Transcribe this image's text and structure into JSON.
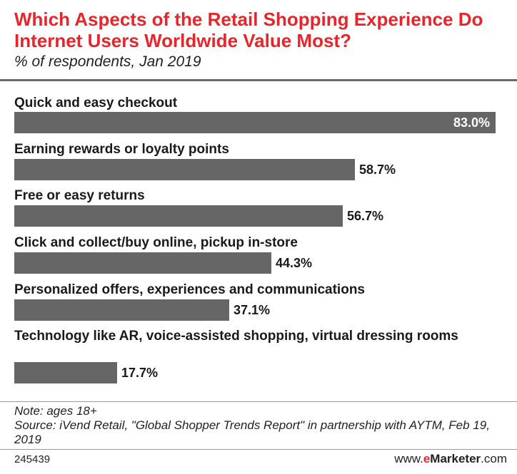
{
  "header": {
    "title": "Which Aspects of the Retail Shopping Experience Do Internet Users Worldwide Value Most?",
    "subtitle": "% of respondents, Jan 2019"
  },
  "chart_data": {
    "type": "bar",
    "orientation": "horizontal",
    "categories": [
      "Quick and easy checkout",
      "Earning rewards or loyalty points",
      "Free or easy returns",
      "Click and collect/buy online, pickup in-store",
      "Personalized offers, experiences and communications",
      "Technology like AR, voice-assisted shopping, virtual dressing rooms"
    ],
    "values": [
      83.0,
      58.7,
      56.7,
      44.3,
      37.1,
      17.7
    ],
    "value_labels": [
      "83.0%",
      "58.7%",
      "56.7%",
      "44.3%",
      "37.1%",
      "17.7%"
    ],
    "bar_color": "#666666",
    "xlim": [
      0,
      83.0
    ],
    "grid": false
  },
  "footer": {
    "note": "Note: ages 18+",
    "source": "Source: iVend Retail, \"Global Shopper Trends Report\" in partnership with AYTM, Feb 19, 2019",
    "chart_id": "245439",
    "brand_prefix": "www.",
    "brand_e": "e",
    "brand_marketer": "Marketer",
    "brand_suffix": ".com"
  },
  "colors": {
    "accent": "#e8252b",
    "bar": "#666666"
  }
}
